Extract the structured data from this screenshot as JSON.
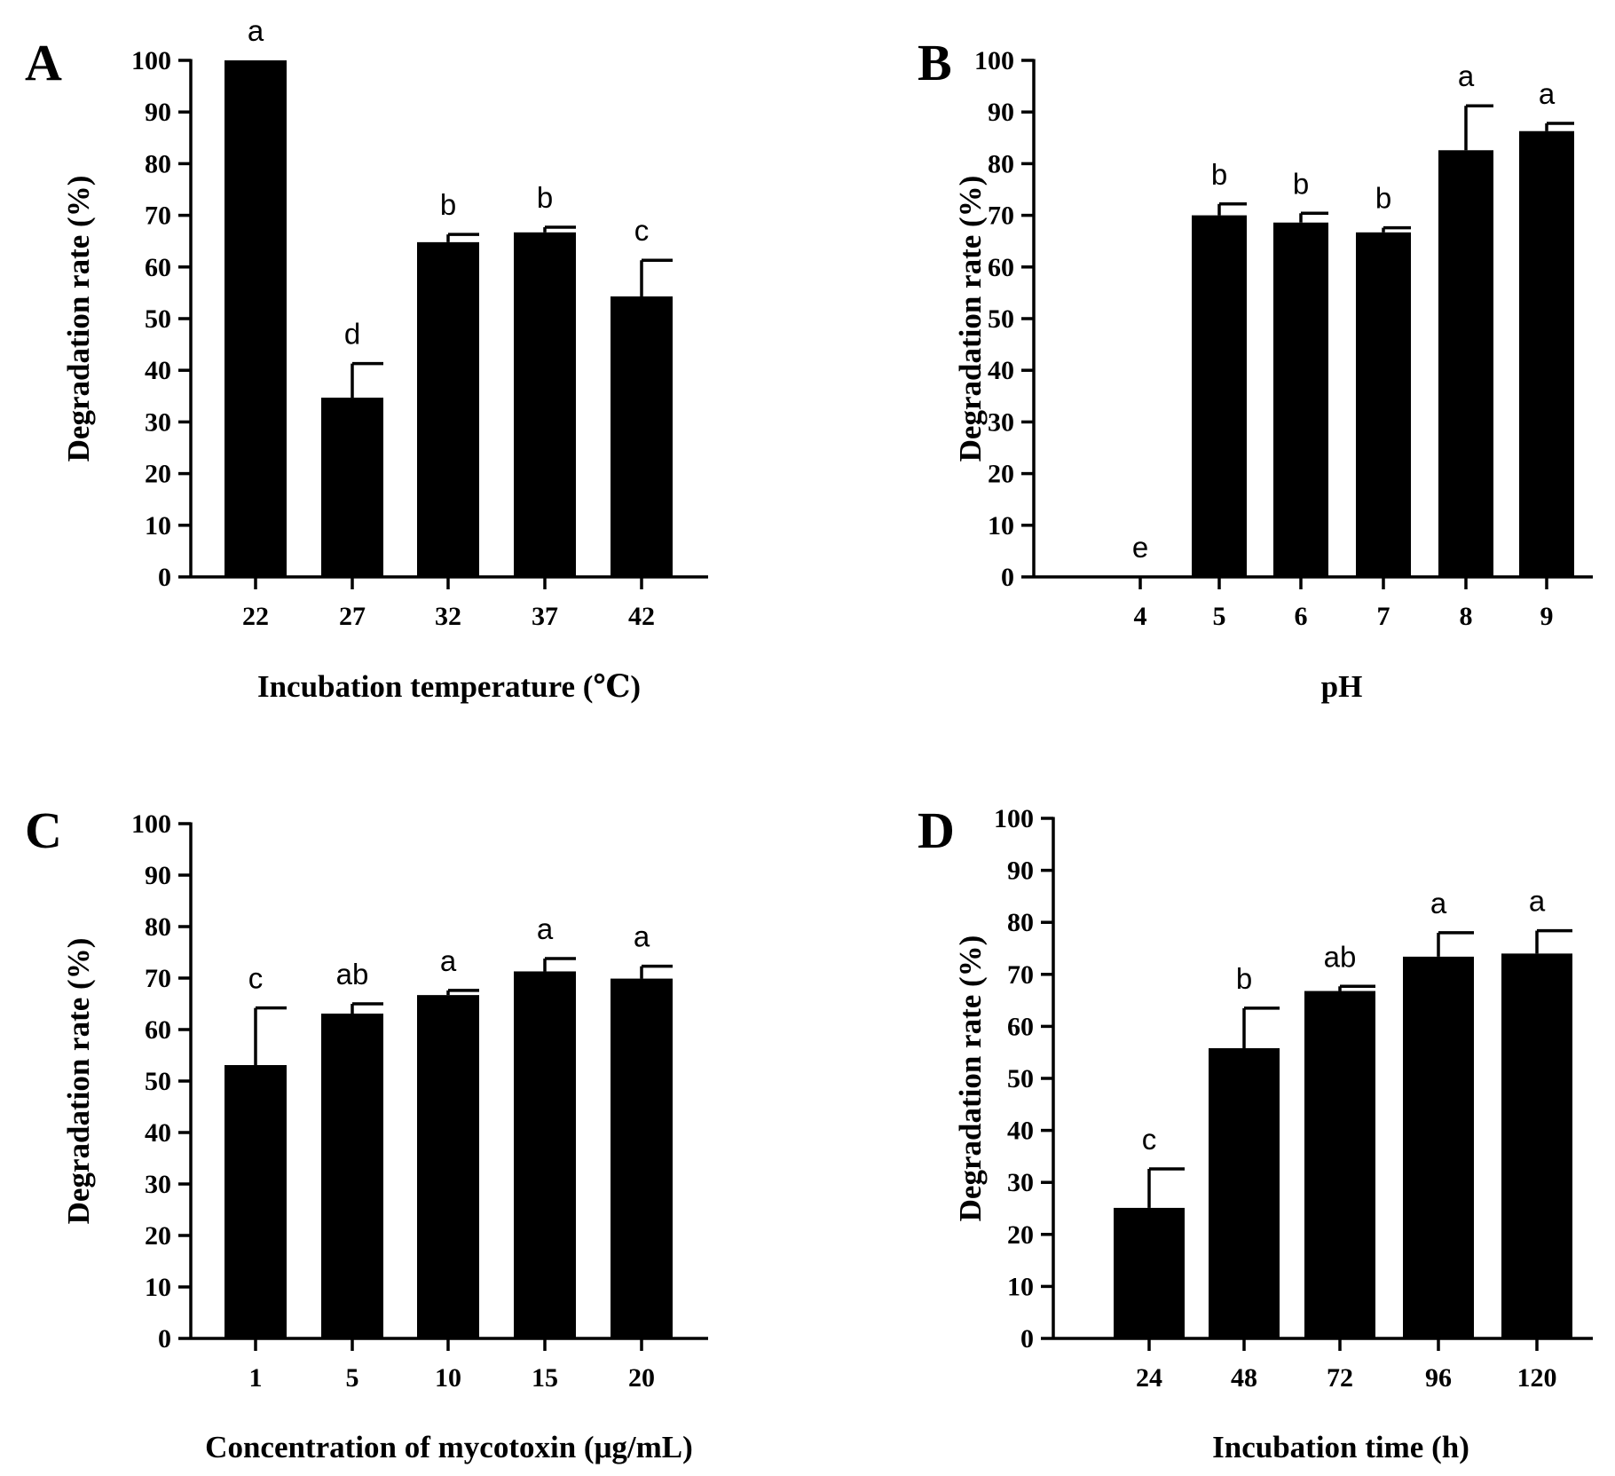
{
  "figure": {
    "bar_color": "#000000",
    "background": "#ffffff"
  },
  "chart_data": [
    {
      "panel": "A",
      "type": "bar",
      "categories": [
        "22",
        "27",
        "32",
        "37",
        "42"
      ],
      "values": [
        100,
        34.7,
        64.8,
        66.7,
        54.3
      ],
      "errors": [
        0,
        6.6,
        1.5,
        1.0,
        7.0
      ],
      "significance": [
        "a",
        "d",
        "b",
        "b",
        "c"
      ],
      "xlabel": "Incubation temperature (℃)",
      "ylabel": "Degradation rate (%)",
      "ylim": [
        0,
        100
      ],
      "yticks": [
        0,
        10,
        20,
        30,
        40,
        50,
        60,
        70,
        80,
        90,
        100
      ]
    },
    {
      "panel": "B",
      "type": "bar",
      "categories": [
        "4",
        "5",
        "6",
        "7",
        "8",
        "9"
      ],
      "values": [
        0,
        70.0,
        68.6,
        66.7,
        82.6,
        86.3
      ],
      "errors": [
        0,
        2.2,
        1.8,
        0.9,
        8.6,
        1.5
      ],
      "significance": [
        "e",
        "b",
        "b",
        "b",
        "a",
        "a"
      ],
      "xlabel": "pH",
      "ylabel": "Degradation rate (%)",
      "ylim": [
        0,
        100
      ],
      "yticks": [
        0,
        10,
        20,
        30,
        40,
        50,
        60,
        70,
        80,
        90,
        100
      ]
    },
    {
      "panel": "C",
      "type": "bar",
      "categories": [
        "1",
        "5",
        "10",
        "15",
        "20"
      ],
      "values": [
        53.1,
        63.1,
        66.7,
        71.3,
        69.9
      ],
      "errors": [
        11.1,
        1.9,
        0.9,
        2.5,
        2.4
      ],
      "significance": [
        "c",
        "ab",
        "a",
        "a",
        "a"
      ],
      "xlabel": "Concentration of mycotoxin (μg/mL)",
      "ylabel": "Degradation rate (%)",
      "ylim": [
        0,
        100
      ],
      "yticks": [
        0,
        10,
        20,
        30,
        40,
        50,
        60,
        70,
        80,
        90,
        100
      ]
    },
    {
      "panel": "D",
      "type": "bar",
      "categories": [
        "24",
        "48",
        "72",
        "96",
        "120"
      ],
      "values": [
        25.1,
        55.8,
        66.8,
        73.4,
        74.0
      ],
      "errors": [
        7.5,
        7.7,
        0.9,
        4.6,
        4.4
      ],
      "significance": [
        "c",
        "b",
        "ab",
        "a",
        "a"
      ],
      "xlabel": "Incubation time (h)",
      "ylabel": "Degradation rate (%)",
      "ylim": [
        0,
        100
      ],
      "yticks": [
        0,
        10,
        20,
        30,
        40,
        50,
        60,
        70,
        80,
        90,
        100
      ]
    }
  ]
}
